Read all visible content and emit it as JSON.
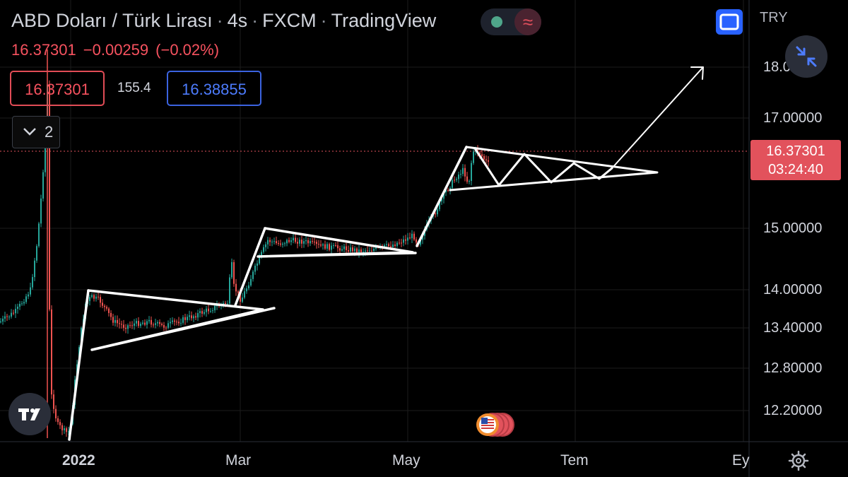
{
  "header": {
    "symbol_name": "ABD Doları / Türk Lirası",
    "interval": "4s",
    "exchange": "FXCM",
    "platform": "TradingView",
    "last_price": "16.37301",
    "change": "−0.00259",
    "change_pct": "(−0.02%)"
  },
  "quote_boxes": {
    "bid": "16.37301",
    "spread": "155.4",
    "ask": "16.38855"
  },
  "indicators_toggle": {
    "count": "2"
  },
  "currency": "TRY",
  "price_axis": {
    "labels": [
      "18.00000",
      "17.00000",
      "15.00000",
      "14.00000",
      "13.40000",
      "12.80000",
      "12.20000"
    ],
    "current_price": "16.37301",
    "countdown": "03:24:40"
  },
  "time_axis": {
    "labels": [
      "2022",
      "Mar",
      "May",
      "Tem",
      "Ey"
    ]
  },
  "colors": {
    "background": "#000000",
    "up": "#26a69a",
    "down": "#ef5350",
    "drawing": "#ffffff",
    "accent": "#2962ff"
  },
  "icons": {
    "status": "market-status-icon",
    "fullscreen": "fullscreen-icon",
    "scale": "collapse-arrows-icon",
    "settings": "gear-icon",
    "logo": "tradingview-logo",
    "events": "economic-events-icon"
  }
}
